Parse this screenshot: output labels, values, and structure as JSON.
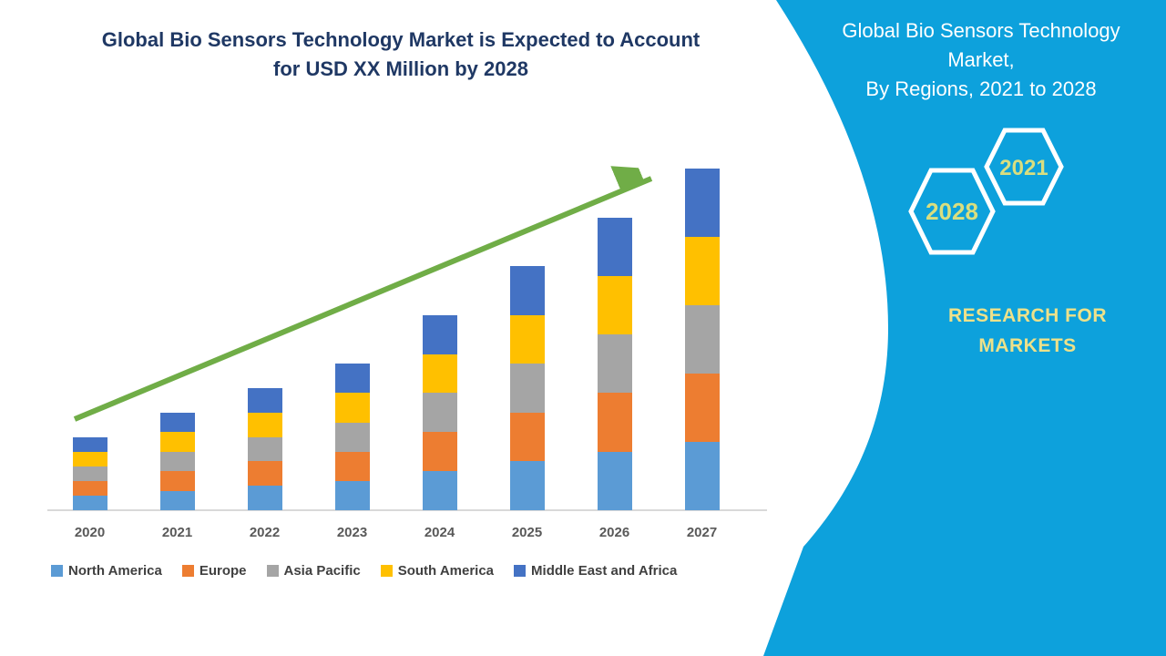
{
  "header": {
    "title_line1": "Global Bio Sensors Technology Market is Expected to Account",
    "title_line2": "for USD XX Million by 2028"
  },
  "chart_data": {
    "type": "bar",
    "stacked": true,
    "title": "Global Bio Sensors Technology Market is Expected to Account for USD XX Million by 2028",
    "categories": [
      "2020",
      "2021",
      "2022",
      "2023",
      "2024",
      "2025",
      "2026",
      "2027"
    ],
    "series": [
      {
        "name": "North America",
        "color": "#5B9BD5",
        "values": [
          3,
          4,
          5,
          6,
          8,
          10,
          12,
          14
        ]
      },
      {
        "name": "Europe",
        "color": "#ED7D31",
        "values": [
          3,
          4,
          5,
          6,
          8,
          10,
          12,
          14
        ]
      },
      {
        "name": "Asia Pacific",
        "color": "#A5A5A5",
        "values": [
          3,
          4,
          5,
          6,
          8,
          10,
          12,
          14
        ]
      },
      {
        "name": "South America",
        "color": "#FFC000",
        "values": [
          3,
          4,
          5,
          6,
          8,
          10,
          12,
          14
        ]
      },
      {
        "name": "Middle East and Africa",
        "color": "#4472C4",
        "values": [
          3,
          4,
          5,
          6,
          8,
          10,
          12,
          14
        ]
      }
    ],
    "stack_totals": [
      15,
      20,
      25,
      30,
      40,
      50,
      60,
      70
    ],
    "values_unit": "relative units (axis unlabeled, chart denotes USD XX Million)",
    "value_axis_visible": false,
    "grid": false,
    "legend_position": "bottom",
    "trend_arrow": {
      "direction": "up-right",
      "color": "#70AD47"
    }
  },
  "right_panel": {
    "title_line1": "Global Bio Sensors Technology",
    "title_line2": "Market,",
    "title_line3": "By Regions, 2021 to 2028",
    "hexagon_back_label": "2028",
    "hexagon_front_label": "2021",
    "brand_line1": "RESEARCH FOR",
    "brand_line2": "MARKETS"
  },
  "colors": {
    "navy": "#1F3864",
    "cyan": "#0DA1DC",
    "brand_yellow": "#EDE18A",
    "hex_label": "#D9DE7F",
    "hex_outline": "#FFFFFF",
    "axis_gray": "#D9D9D9",
    "tick_gray": "#595959",
    "legend_text": "#404040",
    "arrow_green": "#70AD47",
    "page_background": "#FFFFFF"
  }
}
